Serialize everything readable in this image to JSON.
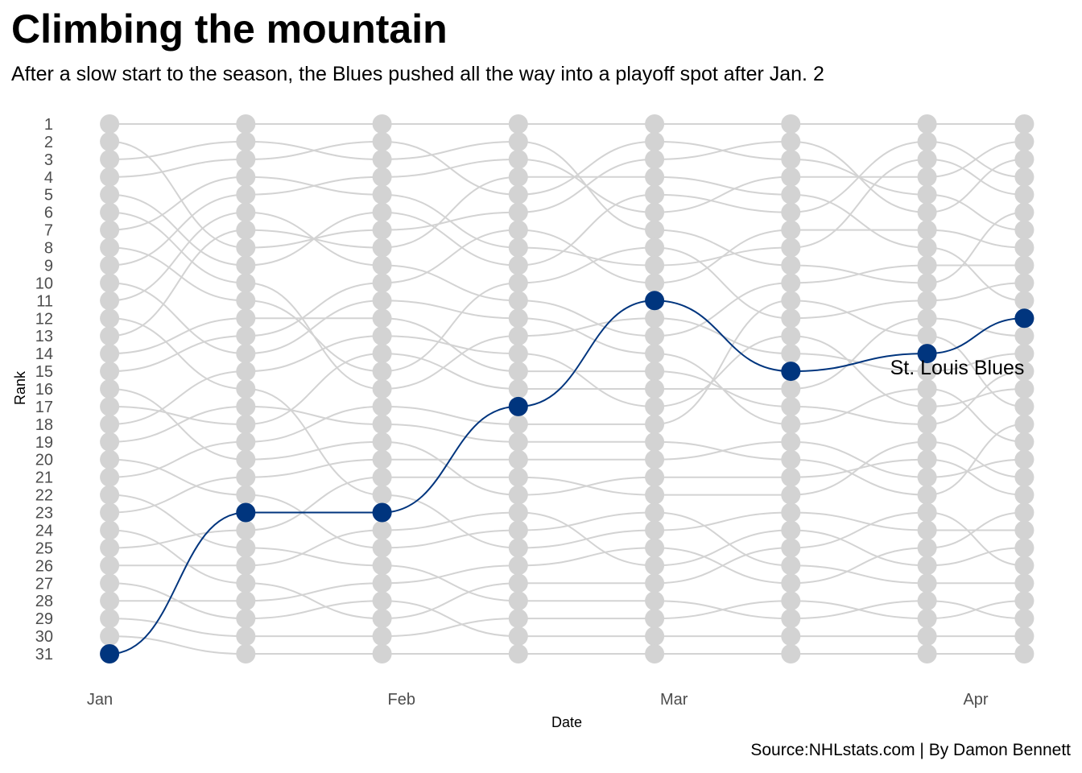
{
  "title": "Climbing the mountain",
  "subtitle": "After a slow start to the season, the Blues pushed all the way into a playoff spot after Jan. 2",
  "caption": "Source:NHLstats.com | By Damon Bennett",
  "colors": {
    "highlight": "#00357e",
    "background_teams": "#d3d3d3",
    "tick_text": "#4d4d4d"
  },
  "chart_data": {
    "type": "line",
    "xlabel": "Date",
    "ylabel": "Rank",
    "x_tick_labels": [
      "Jan",
      "Feb",
      "Mar",
      "Apr"
    ],
    "x_ticks": [
      "2019-01-01",
      "2019-02-01",
      "2019-03-01",
      "2019-04-01"
    ],
    "y_reversed": true,
    "ylim": [
      1,
      31
    ],
    "y_ticks": [
      1,
      2,
      3,
      4,
      5,
      6,
      7,
      8,
      9,
      10,
      11,
      12,
      13,
      14,
      15,
      16,
      17,
      18,
      19,
      20,
      21,
      22,
      23,
      24,
      25,
      26,
      27,
      28,
      29,
      30,
      31
    ],
    "x": [
      "2019-01-02",
      "2019-01-16",
      "2019-01-30",
      "2019-02-13",
      "2019-02-27",
      "2019-03-13",
      "2019-03-27",
      "2019-04-06"
    ],
    "highlight_series": {
      "name": "St. Louis Blues",
      "values": [
        31,
        23,
        23,
        17,
        11,
        15,
        14,
        12
      ]
    },
    "other_teams": [
      [
        1,
        1,
        1,
        1,
        1,
        1,
        1,
        1
      ],
      [
        2,
        8,
        7,
        6,
        3,
        2,
        6,
        3
      ],
      [
        3,
        2,
        3,
        2,
        7,
        9,
        10,
        6
      ],
      [
        4,
        3,
        2,
        5,
        2,
        3,
        5,
        7
      ],
      [
        5,
        9,
        6,
        9,
        5,
        6,
        2,
        4
      ],
      [
        6,
        10,
        16,
        13,
        12,
        14,
        15,
        14
      ],
      [
        7,
        4,
        5,
        8,
        9,
        8,
        3,
        5
      ],
      [
        8,
        11,
        15,
        10,
        8,
        12,
        11,
        10
      ],
      [
        9,
        5,
        4,
        3,
        6,
        4,
        4,
        2
      ],
      [
        10,
        14,
        11,
        12,
        14,
        18,
        16,
        19
      ],
      [
        11,
        6,
        9,
        11,
        13,
        10,
        9,
        9
      ],
      [
        12,
        16,
        22,
        25,
        24,
        23,
        24,
        24
      ],
      [
        13,
        7,
        8,
        4,
        4,
        5,
        8,
        11
      ],
      [
        14,
        12,
        12,
        15,
        15,
        17,
        18,
        15
      ],
      [
        15,
        13,
        10,
        7,
        10,
        7,
        7,
        8
      ],
      [
        16,
        20,
        19,
        22,
        21,
        21,
        20,
        22
      ],
      [
        17,
        18,
        14,
        16,
        16,
        16,
        12,
        13
      ],
      [
        18,
        15,
        13,
        14,
        17,
        13,
        17,
        16
      ],
      [
        19,
        17,
        18,
        19,
        19,
        20,
        22,
        18
      ],
      [
        20,
        22,
        25,
        24,
        23,
        26,
        27,
        27
      ],
      [
        21,
        19,
        17,
        18,
        18,
        11,
        13,
        17
      ],
      [
        22,
        25,
        26,
        28,
        28,
        29,
        28,
        29
      ],
      [
        23,
        21,
        20,
        20,
        20,
        19,
        21,
        20
      ],
      [
        24,
        27,
        29,
        27,
        27,
        25,
        23,
        26
      ],
      [
        25,
        24,
        21,
        21,
        22,
        22,
        19,
        21
      ],
      [
        26,
        26,
        24,
        23,
        26,
        24,
        26,
        25
      ],
      [
        27,
        29,
        28,
        30,
        30,
        30,
        30,
        30
      ],
      [
        28,
        28,
        27,
        26,
        25,
        27,
        25,
        23
      ],
      [
        29,
        30,
        30,
        29,
        29,
        28,
        29,
        28
      ],
      [
        30,
        31,
        31,
        31,
        31,
        31,
        31,
        31
      ]
    ]
  }
}
